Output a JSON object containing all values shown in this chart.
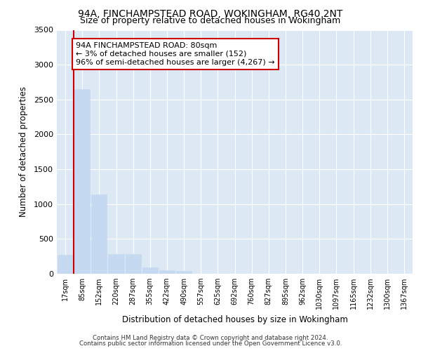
{
  "title_line1": "94A, FINCHAMPSTEAD ROAD, WOKINGHAM, RG40 2NT",
  "title_line2": "Size of property relative to detached houses in Wokingham",
  "xlabel": "Distribution of detached houses by size in Wokingham",
  "ylabel": "Number of detached properties",
  "bar_color": "#c5d9f0",
  "bar_edge_color": "#c5d9f0",
  "categories": [
    "17sqm",
    "85sqm",
    "152sqm",
    "220sqm",
    "287sqm",
    "355sqm",
    "422sqm",
    "490sqm",
    "557sqm",
    "625sqm",
    "692sqm",
    "760sqm",
    "827sqm",
    "895sqm",
    "962sqm",
    "1030sqm",
    "1097sqm",
    "1165sqm",
    "1232sqm",
    "1300sqm",
    "1367sqm"
  ],
  "values": [
    270,
    2650,
    1140,
    280,
    280,
    90,
    55,
    40,
    0,
    0,
    0,
    0,
    0,
    0,
    0,
    0,
    0,
    0,
    0,
    0,
    0
  ],
  "ylim": [
    0,
    3500
  ],
  "yticks": [
    0,
    500,
    1000,
    1500,
    2000,
    2500,
    3000,
    3500
  ],
  "annotation_text": "94A FINCHAMPSTEAD ROAD: 80sqm\n← 3% of detached houses are smaller (152)\n96% of semi-detached houses are larger (4,267) →",
  "annotation_box_color": "#ffffff",
  "annotation_box_edge_color": "#cc0000",
  "marker_line_color": "#cc0000",
  "plot_bg_color": "#dce9f5",
  "grid_color": "#ffffff",
  "footer_line1": "Contains HM Land Registry data © Crown copyright and database right 2024.",
  "footer_line2": "Contains public sector information licensed under the Open Government Licence v3.0."
}
